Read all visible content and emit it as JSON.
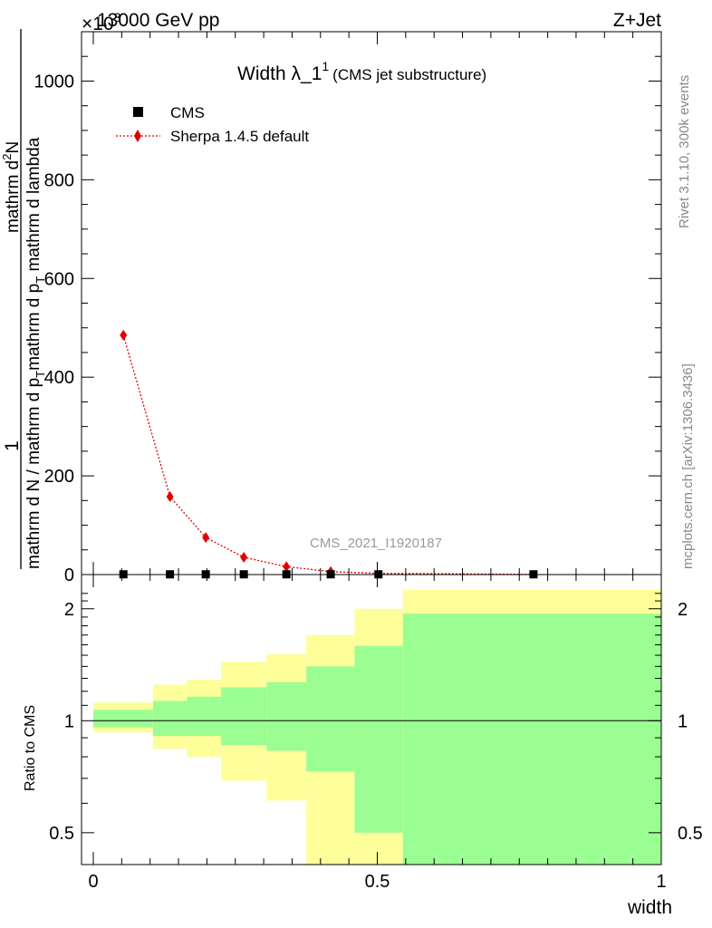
{
  "header": {
    "left": "13000 GeV pp",
    "right": "Z+Jet",
    "exponent_label": "×10",
    "exponent_power": "3"
  },
  "side_labels": {
    "rivet": "Rivet 3.1.10,  300k events",
    "mcplots": "mcplots.cern.ch [arXiv:1306.3436]"
  },
  "watermark": "CMS_2021_I1920187",
  "chart_data": [
    {
      "type": "scatter",
      "title": "Width λ_1",
      "title_sup": "1",
      "subtitle": "(CMS jet substructure)",
      "ylabel": "1 / mathrm d N / mathrm d p_T mathrm d p_T mathrm d lambda  mathrm d²N",
      "ylabel_parts": {
        "numerator": "1",
        "denominator": "mathrm d N / mathrm d p",
        "denominator_sub": "T",
        "rhs_prefix": "mathrm d p",
        "rhs_sub": "T",
        "rhs_suffix": " mathrm d lambda",
        "rhs_top": "mathrm d",
        "rhs_top_sup": "2",
        "rhs_top_end": "N"
      },
      "xlim": [
        0,
        1
      ],
      "ylim": [
        0,
        1100
      ],
      "y_scale_note": "×10^3",
      "yticks": [
        0,
        200,
        400,
        600,
        800,
        1000
      ],
      "ytick_labels": [
        "0",
        "200",
        "400",
        "600",
        "800",
        "1000"
      ],
      "legend_position": "top-left",
      "series": [
        {
          "name": "CMS",
          "style": "black-square",
          "x": [
            0.053,
            0.135,
            0.198,
            0.265,
            0.34,
            0.418,
            0.502,
            0.775
          ],
          "y": [
            0.5,
            0.5,
            0.5,
            0.5,
            0.5,
            0.5,
            0.5,
            0.5
          ]
        },
        {
          "name": "Sherpa 1.4.5 default",
          "style": "red-diamond-dotted",
          "color": "#e00000",
          "x": [
            0.053,
            0.135,
            0.198,
            0.265,
            0.34,
            0.418,
            0.502,
            0.775
          ],
          "y": [
            485,
            158,
            75,
            35,
            16,
            6,
            2.5,
            0.3
          ]
        }
      ]
    },
    {
      "type": "area",
      "ylabel": "Ratio to CMS",
      "xlabel": "width",
      "xlim": [
        0,
        1
      ],
      "ylim": [
        0.35,
        2.25
      ],
      "yticks": [
        0.5,
        1,
        2
      ],
      "ytick_labels": [
        "0.5",
        "1",
        "2"
      ],
      "xticks": [
        0,
        0.5,
        1
      ],
      "xtick_labels": [
        "0",
        "0.5",
        "1"
      ],
      "reference_line": 1,
      "colors": {
        "inner": "#9bfe93",
        "outer": "#fefe9b"
      },
      "bands": [
        {
          "x0": 0.0,
          "x1": 0.105,
          "inner": [
            0.96,
            1.07
          ],
          "outer": [
            0.93,
            1.12
          ]
        },
        {
          "x0": 0.105,
          "x1": 0.165,
          "inner": [
            0.91,
            1.13
          ],
          "outer": [
            0.84,
            1.25
          ]
        },
        {
          "x0": 0.165,
          "x1": 0.225,
          "inner": [
            0.91,
            1.16
          ],
          "outer": [
            0.8,
            1.29
          ]
        },
        {
          "x0": 0.225,
          "x1": 0.305,
          "inner": [
            0.86,
            1.23
          ],
          "outer": [
            0.69,
            1.44
          ]
        },
        {
          "x0": 0.305,
          "x1": 0.375,
          "inner": [
            0.83,
            1.27
          ],
          "outer": [
            0.61,
            1.51
          ]
        },
        {
          "x0": 0.375,
          "x1": 0.46,
          "inner": [
            0.73,
            1.4
          ],
          "outer": [
            0.35,
            1.7
          ]
        },
        {
          "x0": 0.46,
          "x1": 0.545,
          "inner": [
            0.5,
            1.59
          ],
          "outer": [
            0.35,
            2.0
          ]
        },
        {
          "x0": 0.545,
          "x1": 1.0,
          "inner": [
            0.35,
            1.94
          ],
          "outer": [
            0.35,
            2.25
          ]
        }
      ]
    }
  ]
}
